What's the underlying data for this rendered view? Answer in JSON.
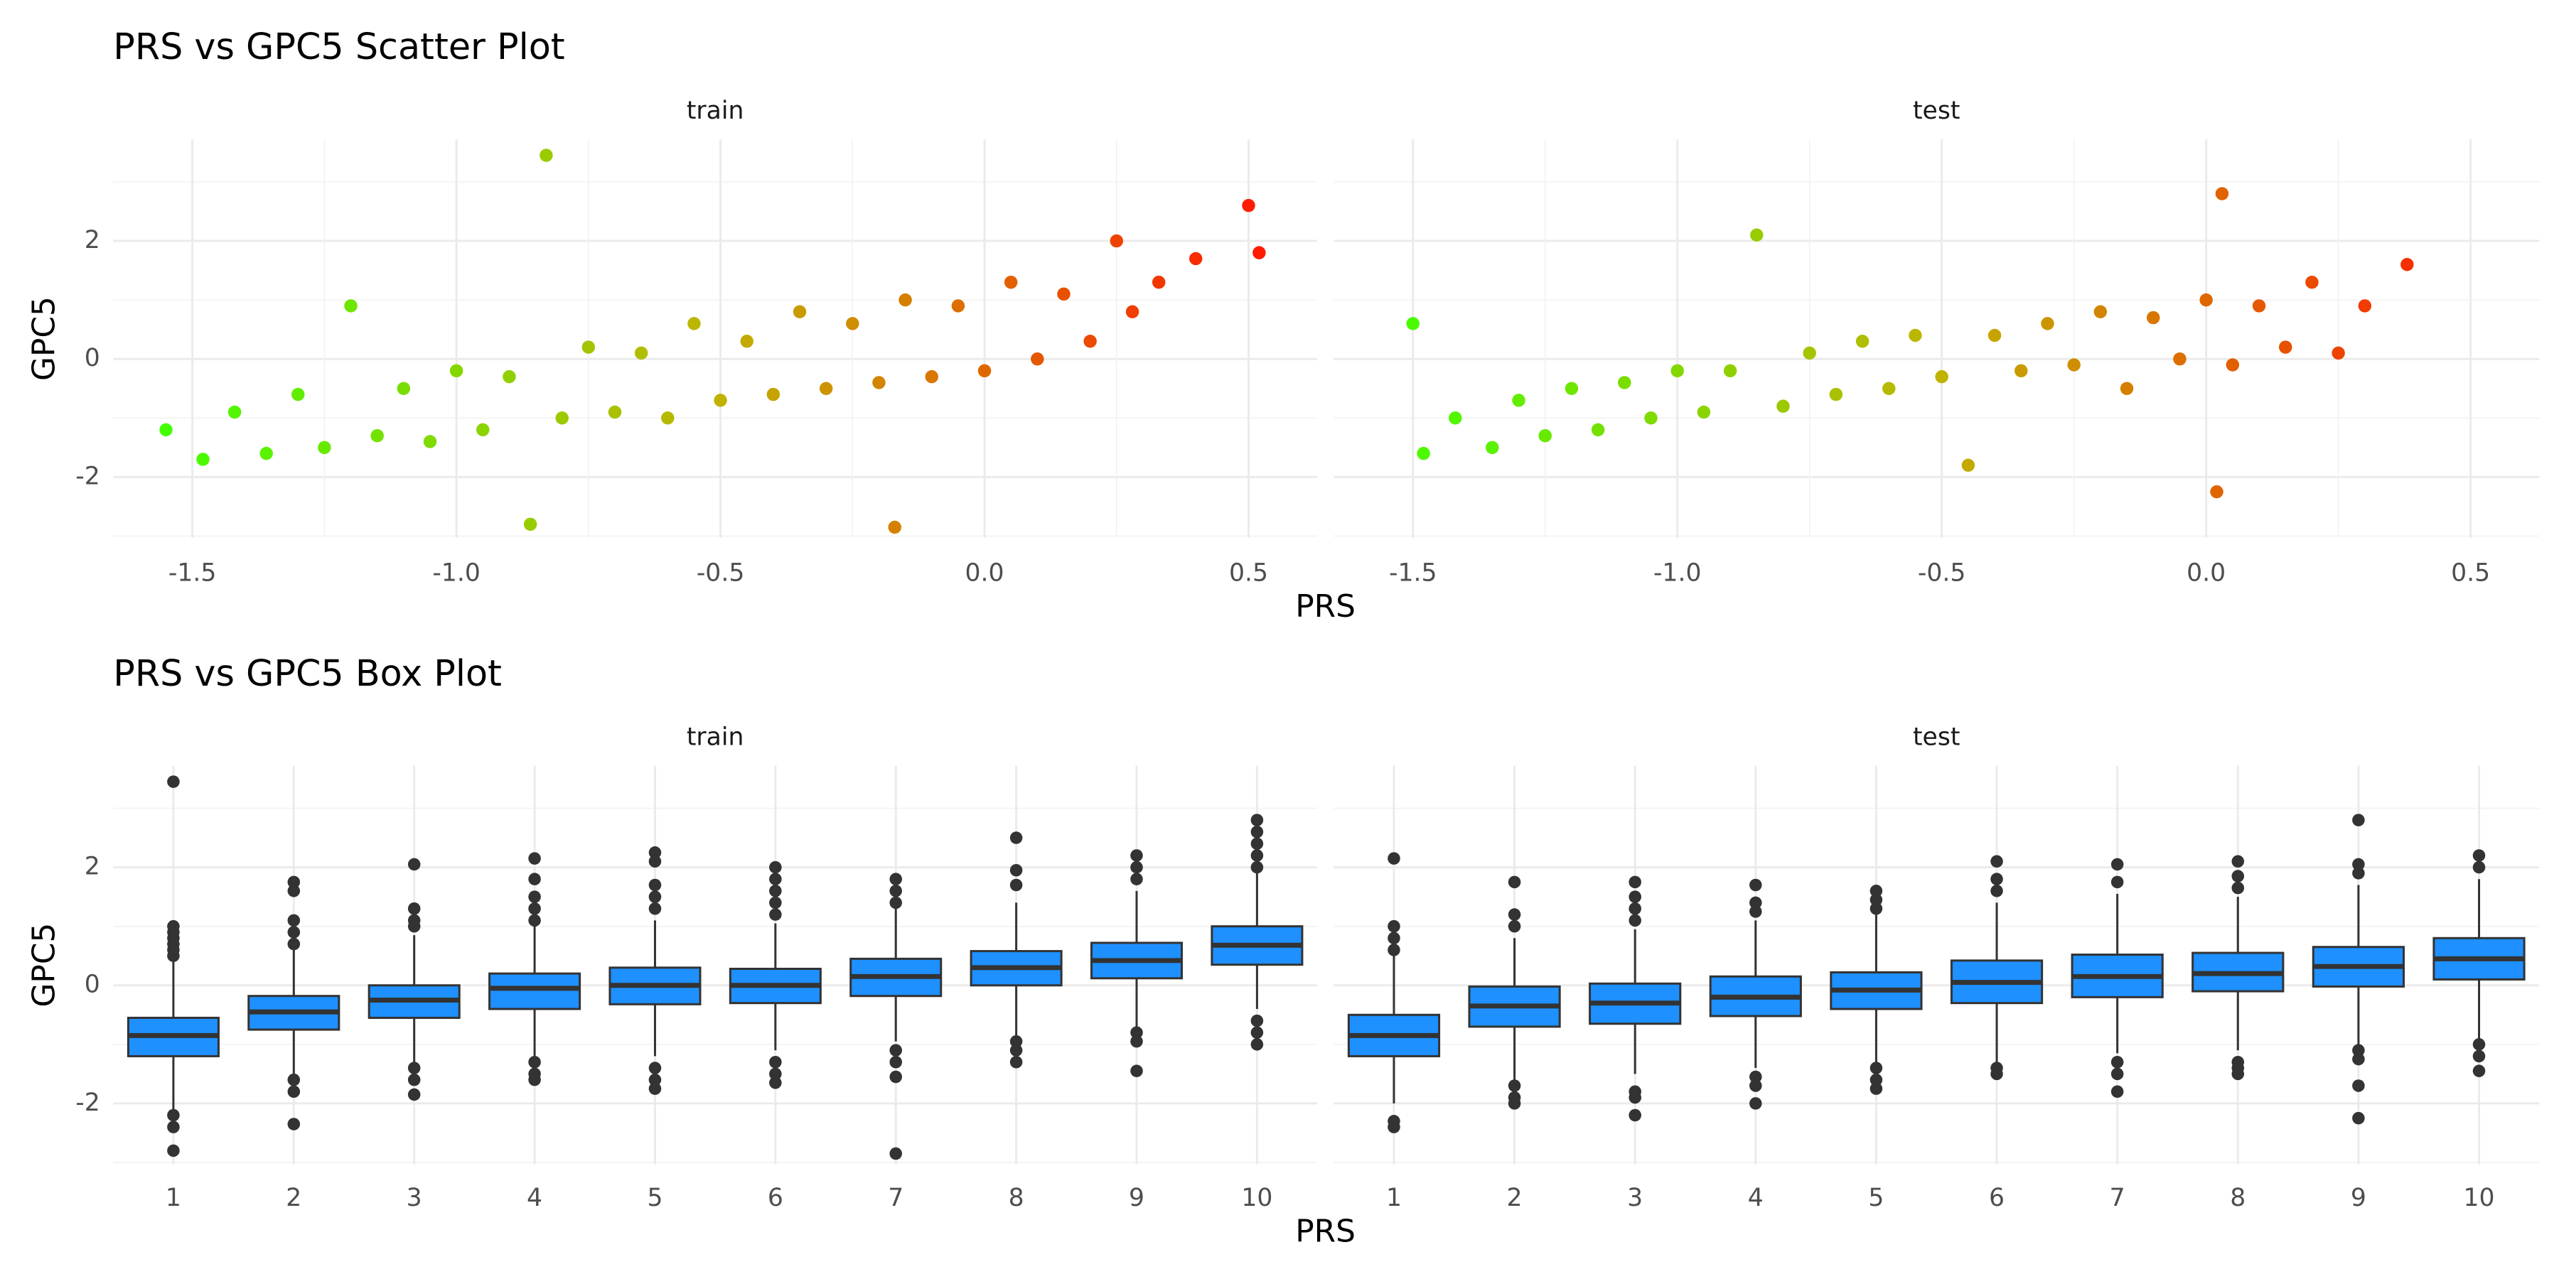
{
  "chart_data": [
    {
      "type": "scatter",
      "title": "PRS vs GPC5 Scatter Plot",
      "x_label": "PRS",
      "y_label": "GPC5",
      "xlim": [
        -1.65,
        0.63
      ],
      "ylim": [
        -3.03,
        3.72
      ],
      "xticks": [
        -1.5,
        {
          "value": -1,
          "label": "-1.0"
        },
        -0.5,
        {
          "value": 0,
          "label": "0.0"
        },
        0.5
      ],
      "yticks": [
        -2,
        0,
        2
      ],
      "grid": true,
      "color_scale": [
        "#44ff00",
        "#bfb400",
        "#ff1a00"
      ],
      "facets": [
        {
          "name": "train",
          "x": [
            -1.55,
            -1.48,
            -1.42,
            -1.36,
            -1.3,
            -1.25,
            -1.2,
            -1.15,
            -1.1,
            -1.05,
            -1.0,
            -0.95,
            -0.9,
            -0.86,
            -0.83,
            -0.8,
            -0.75,
            -0.7,
            -0.65,
            -0.6,
            -0.55,
            -0.5,
            -0.45,
            -0.4,
            -0.35,
            -0.3,
            -0.25,
            -0.2,
            -0.17,
            -0.15,
            -0.1,
            -0.05,
            0,
            0.05,
            0.1,
            0.15,
            0.2,
            0.25,
            0.28,
            0.33,
            0.4,
            0.5,
            0.52
          ],
          "y": [
            -1.2,
            -1.7,
            -0.9,
            -1.6,
            -0.6,
            -1.5,
            0.9,
            -1.3,
            -0.5,
            -1.4,
            -0.2,
            -1.2,
            -0.3,
            -2.8,
            3.45,
            -1.0,
            0.2,
            -0.9,
            0.1,
            -1.0,
            0.6,
            -0.7,
            0.3,
            -0.6,
            0.8,
            -0.5,
            0.6,
            -0.4,
            -2.85,
            1.0,
            -0.3,
            0.9,
            -0.2,
            1.3,
            0.0,
            1.1,
            0.3,
            2.0,
            0.8,
            1.3,
            1.7,
            2.6,
            1.8
          ]
        },
        {
          "name": "test",
          "x": [
            -1.5,
            -1.48,
            -1.42,
            -1.35,
            -1.3,
            -1.25,
            -1.2,
            -1.15,
            -1.1,
            -1.05,
            -1.0,
            -0.95,
            -0.9,
            -0.85,
            -0.8,
            -0.75,
            -0.7,
            -0.65,
            -0.6,
            -0.55,
            -0.5,
            -0.45,
            -0.4,
            -0.35,
            -0.3,
            -0.25,
            -0.2,
            -0.15,
            -0.1,
            -0.05,
            0.0,
            0.03,
            0.05,
            0.1,
            0.15,
            0.2,
            0.25,
            0.3,
            0.38,
            0.02
          ],
          "y": [
            0.6,
            -1.6,
            -1.0,
            -1.5,
            -0.7,
            -1.3,
            -0.5,
            -1.2,
            -0.4,
            -1.0,
            -0.2,
            -0.9,
            -0.2,
            2.1,
            -0.8,
            0.1,
            -0.6,
            0.3,
            -0.5,
            0.4,
            -0.3,
            -1.8,
            0.4,
            -0.2,
            0.6,
            -0.1,
            0.8,
            -0.5,
            0.7,
            0.0,
            1.0,
            2.8,
            -0.1,
            0.9,
            0.2,
            1.3,
            0.1,
            0.9,
            1.6,
            -2.25
          ]
        }
      ]
    },
    {
      "type": "box",
      "title": "PRS vs GPC5 Box Plot",
      "x_label": "PRS",
      "y_label": "GPC5",
      "categories": [
        "1",
        "2",
        "3",
        "4",
        "5",
        "6",
        "7",
        "8",
        "9",
        "10"
      ],
      "ylim": [
        -3.03,
        3.72
      ],
      "yticks": [
        -2,
        0,
        2
      ],
      "grid": true,
      "color": "#1e90ff",
      "facets": [
        {
          "name": "train",
          "whislo": [
            -2.1,
            -1.55,
            -1.3,
            -1.2,
            -1.2,
            -1.1,
            -0.95,
            -0.85,
            -0.7,
            -0.4
          ],
          "q1": [
            -1.2,
            -0.75,
            -0.55,
            -0.4,
            -0.32,
            -0.3,
            -0.18,
            0.0,
            0.12,
            0.35
          ],
          "med": [
            -0.85,
            -0.45,
            -0.25,
            -0.05,
            0.0,
            0.0,
            0.15,
            0.3,
            0.42,
            0.68
          ],
          "q3": [
            -0.55,
            -0.18,
            0.0,
            0.2,
            0.3,
            0.28,
            0.45,
            0.58,
            0.72,
            1.0
          ],
          "whishi": [
            0.45,
            0.6,
            0.85,
            1.0,
            1.1,
            1.05,
            1.3,
            1.4,
            1.6,
            1.9
          ],
          "outliers": [
            [
              3.45,
              1.0,
              0.9,
              0.8,
              0.7,
              0.6,
              0.5,
              -2.2,
              -2.4,
              -2.8
            ],
            [
              1.75,
              1.6,
              1.1,
              0.9,
              0.7,
              -1.6,
              -1.8,
              -2.35
            ],
            [
              2.05,
              1.3,
              1.1,
              1.0,
              -1.4,
              -1.6,
              -1.85
            ],
            [
              2.15,
              1.8,
              1.5,
              1.3,
              1.1,
              -1.3,
              -1.5,
              -1.6
            ],
            [
              2.25,
              2.1,
              1.7,
              1.5,
              1.3,
              -1.4,
              -1.6,
              -1.75
            ],
            [
              2.0,
              1.8,
              1.6,
              1.4,
              1.2,
              -1.3,
              -1.5,
              -1.65
            ],
            [
              1.8,
              1.6,
              1.4,
              -1.1,
              -1.3,
              -1.55,
              -2.85
            ],
            [
              2.5,
              1.95,
              1.7,
              -0.95,
              -1.1,
              -1.3
            ],
            [
              2.2,
              2.0,
              1.8,
              -0.8,
              -0.95,
              -1.45
            ],
            [
              2.8,
              2.6,
              2.4,
              2.2,
              2.0,
              -0.6,
              -0.8,
              -1.0
            ]
          ]
        },
        {
          "name": "test",
          "whislo": [
            -2.0,
            -1.6,
            -1.5,
            -1.4,
            -1.3,
            -1.3,
            -1.15,
            -1.1,
            -1.0,
            -0.95
          ],
          "q1": [
            -1.2,
            -0.7,
            -0.65,
            -0.52,
            -0.4,
            -0.3,
            -0.2,
            -0.1,
            -0.02,
            0.1
          ],
          "med": [
            -0.85,
            -0.35,
            -0.3,
            -0.2,
            -0.08,
            0.05,
            0.15,
            0.2,
            0.32,
            0.45
          ],
          "q3": [
            -0.5,
            -0.02,
            0.03,
            0.15,
            0.22,
            0.42,
            0.52,
            0.55,
            0.65,
            0.8
          ],
          "whishi": [
            0.5,
            0.8,
            0.95,
            1.1,
            1.2,
            1.4,
            1.55,
            1.5,
            1.7,
            1.8
          ],
          "outliers": [
            [
              2.15,
              1.0,
              0.8,
              0.6,
              -2.3,
              -2.4
            ],
            [
              1.75,
              1.2,
              1.0,
              -1.7,
              -1.9,
              -2.0
            ],
            [
              1.75,
              1.5,
              1.3,
              1.1,
              -1.8,
              -1.9,
              -2.2
            ],
            [
              1.7,
              1.4,
              1.25,
              -1.55,
              -1.7,
              -2.0
            ],
            [
              1.6,
              1.45,
              1.3,
              -1.4,
              -1.6,
              -1.75
            ],
            [
              2.1,
              1.8,
              1.6,
              -1.4,
              -1.5
            ],
            [
              2.05,
              1.75,
              -1.3,
              -1.5,
              -1.8
            ],
            [
              2.1,
              1.85,
              1.65,
              -1.3,
              -1.4,
              -1.5
            ],
            [
              2.8,
              2.05,
              1.9,
              -1.1,
              -1.25,
              -1.7,
              -2.25
            ],
            [
              2.2,
              2.0,
              -1.0,
              -1.2,
              -1.45
            ]
          ]
        }
      ]
    }
  ]
}
